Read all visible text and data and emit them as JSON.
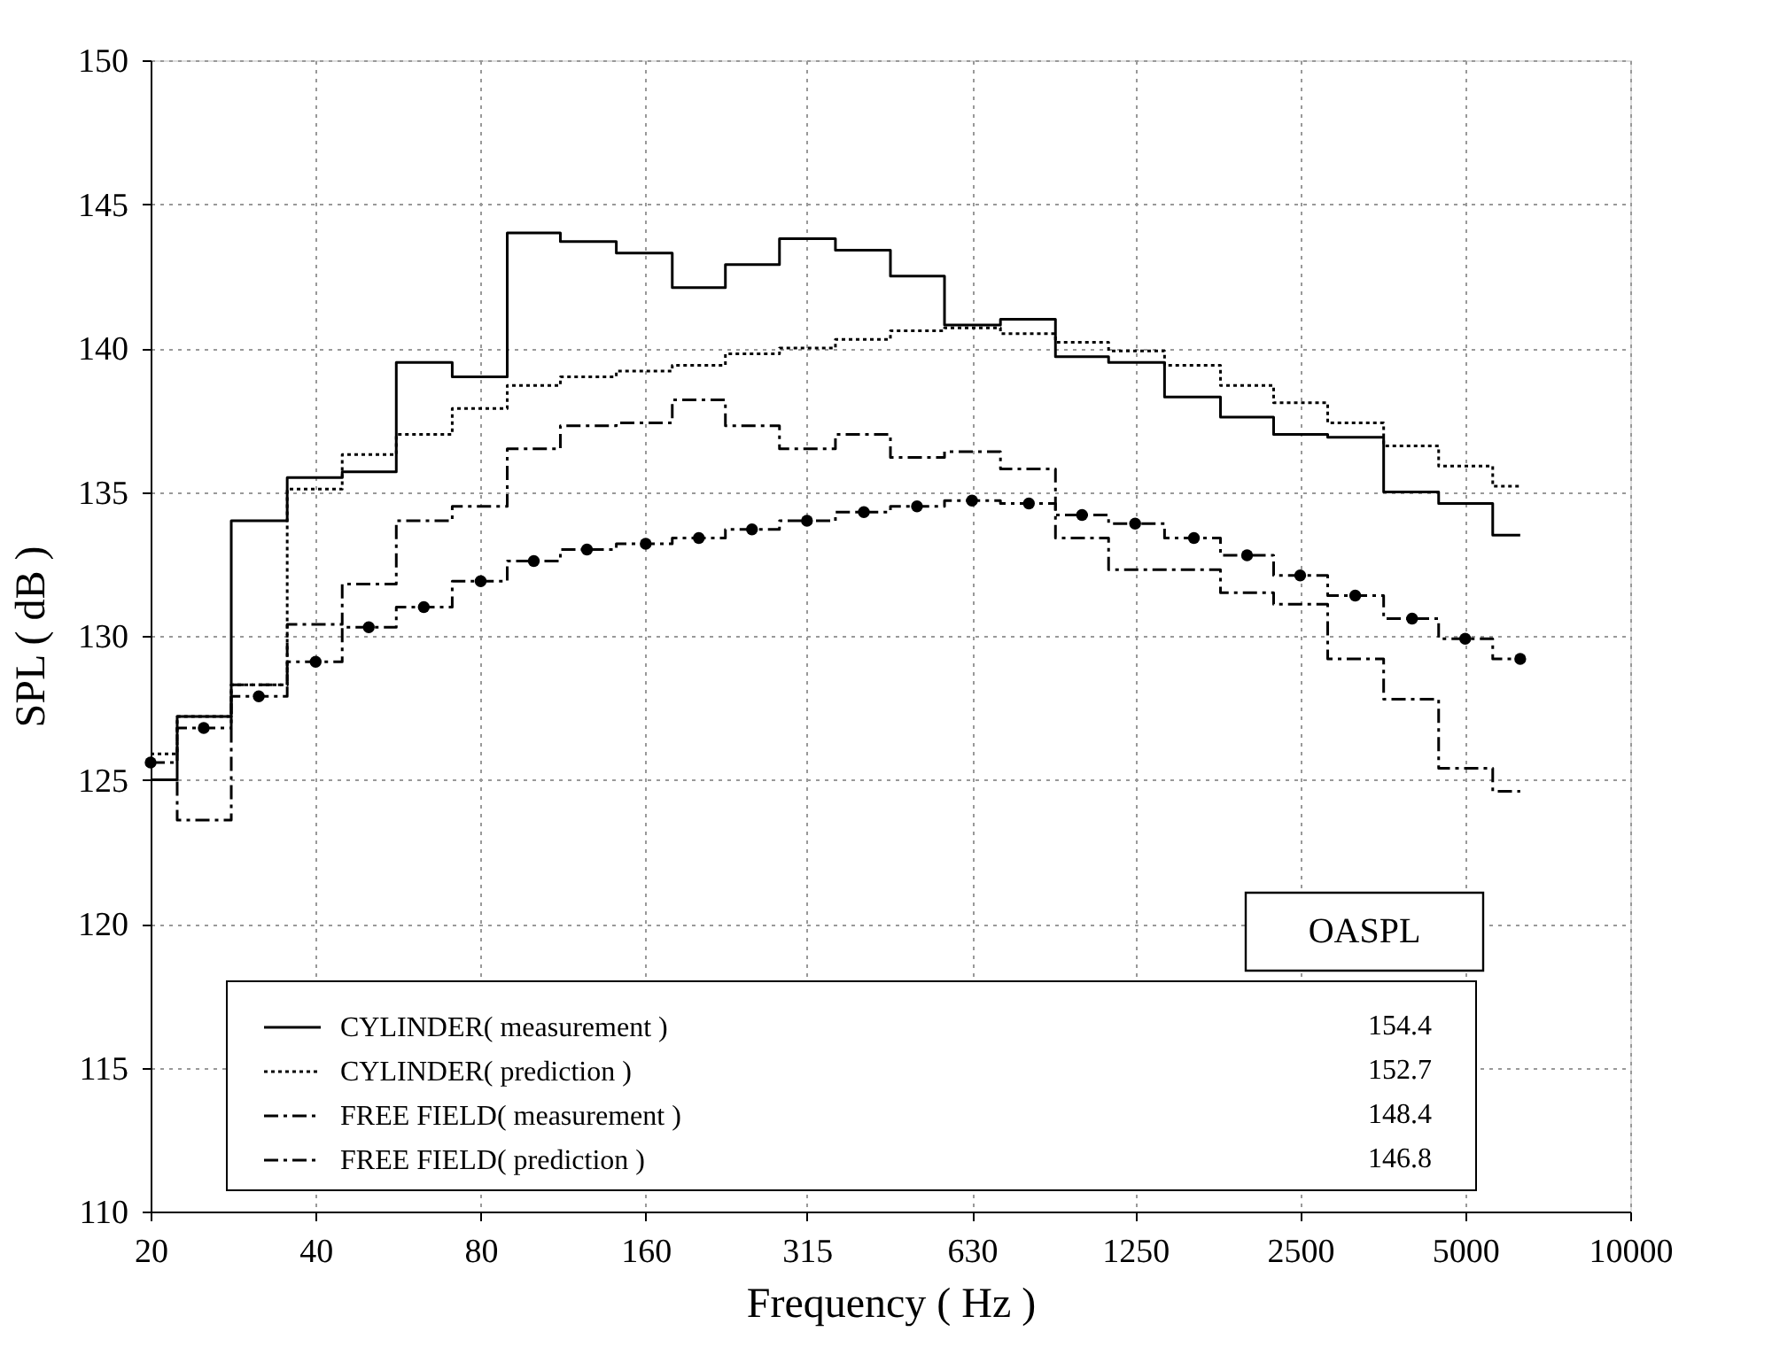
{
  "chart_data": {
    "type": "step",
    "xlabel": "Frequency ( Hz )",
    "ylabel": "SPL ( dB )",
    "x": [
      20,
      25,
      31.5,
      40,
      50,
      63,
      80,
      100,
      125,
      160,
      200,
      250,
      315,
      400,
      500,
      630,
      800,
      1000,
      1250,
      1600,
      2000,
      2500,
      3150,
      4000,
      5000,
      6300
    ],
    "series": [
      {
        "name": "CYLINDER( measurement )",
        "color": "#000000",
        "line_style": "solid",
        "marker": "none",
        "values": [
          125.0,
          127.2,
          134.0,
          135.5,
          135.7,
          139.5,
          139.0,
          144.0,
          143.7,
          143.3,
          142.1,
          142.9,
          143.8,
          143.4,
          142.5,
          140.8,
          141.0,
          139.7,
          139.5,
          138.3,
          137.6,
          137.0,
          136.9,
          135.0,
          134.6,
          133.5
        ]
      },
      {
        "name": "CYLINDER( prediction )",
        "color": "#000000",
        "line_style": "dotted",
        "marker": "none",
        "values": [
          125.9,
          127.2,
          128.3,
          135.1,
          136.3,
          137.0,
          137.9,
          138.7,
          139.0,
          139.2,
          139.4,
          139.8,
          140.0,
          140.3,
          140.6,
          140.7,
          140.5,
          140.2,
          139.9,
          139.4,
          138.7,
          138.1,
          137.4,
          136.6,
          135.9,
          135.2
        ]
      },
      {
        "name": "FREE FIELD( measurement )",
        "color": "#000000",
        "line_style": "dashed",
        "marker": "none",
        "values": [
          125.0,
          123.6,
          128.3,
          130.4,
          131.8,
          134.0,
          134.5,
          136.5,
          137.3,
          137.4,
          138.2,
          137.3,
          136.5,
          137.0,
          136.2,
          136.4,
          135.8,
          133.4,
          132.3,
          132.3,
          131.5,
          131.1,
          129.2,
          127.8,
          125.4,
          124.6
        ]
      },
      {
        "name": "FREE FIELD( prediction )",
        "color": "#000000",
        "line_style": "dashed",
        "marker": "circle",
        "values": [
          125.6,
          126.8,
          127.9,
          129.1,
          130.3,
          131.0,
          131.9,
          132.6,
          133.0,
          133.2,
          133.4,
          133.7,
          134.0,
          134.3,
          134.5,
          134.7,
          134.6,
          134.2,
          133.9,
          133.4,
          132.8,
          132.1,
          131.4,
          130.6,
          129.9,
          129.2
        ]
      }
    ],
    "annotations": [
      "OASPL",
      "154.4",
      "152.7",
      "148.4",
      "146.8"
    ],
    "xlim": [
      20,
      10000
    ],
    "xticks": [
      20,
      40,
      80,
      160,
      315,
      630,
      1250,
      2500,
      5000,
      10000
    ],
    "ylim": [
      110,
      150
    ],
    "yticks": [
      110,
      115,
      120,
      125,
      130,
      135,
      140,
      145,
      150
    ],
    "log": "x",
    "grid": true,
    "legend": "bottom"
  }
}
